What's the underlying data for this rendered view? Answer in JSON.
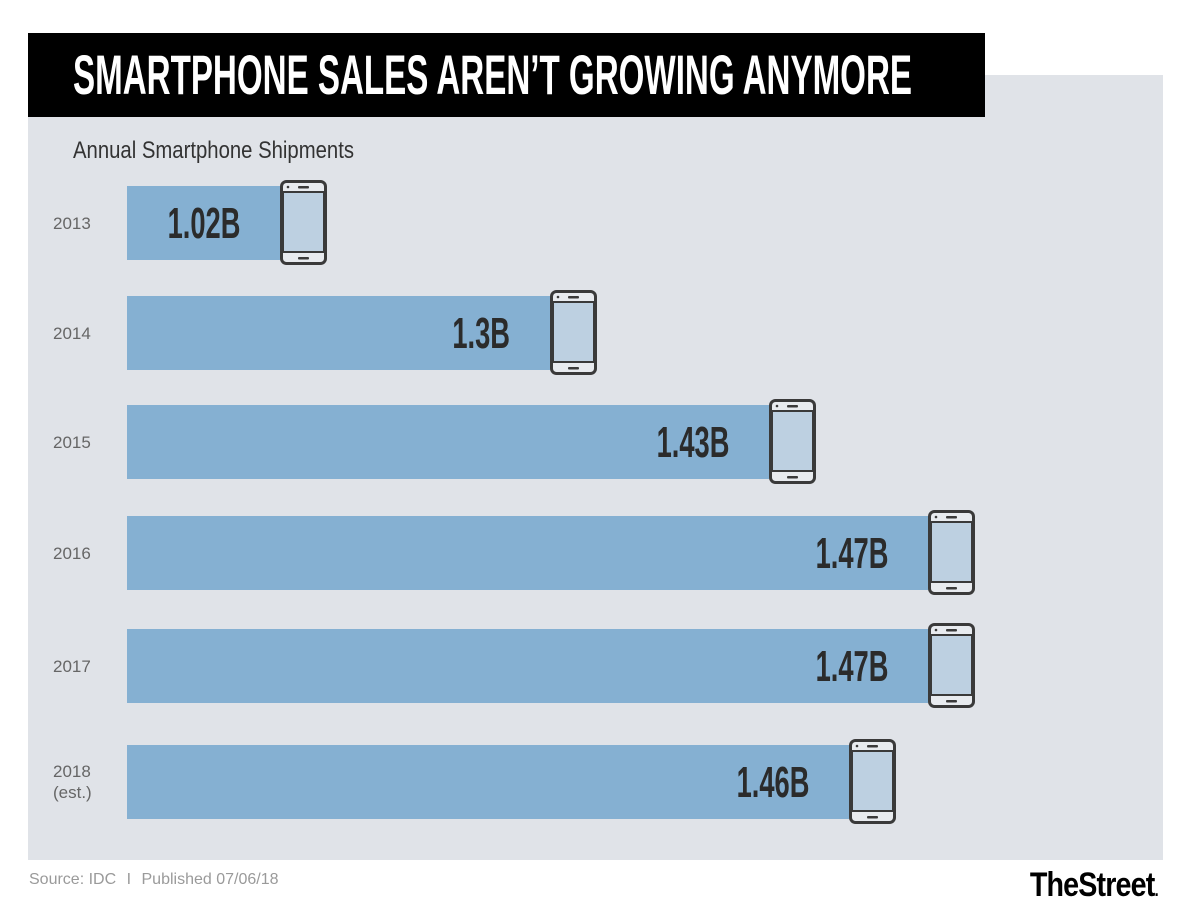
{
  "header": {
    "title": "SMARTPHONE SALES AREN’T GROWING ANYMORE"
  },
  "chart_data": {
    "type": "bar",
    "orientation": "horizontal",
    "title": "SMARTPHONE SALES AREN’T GROWING ANYMORE",
    "subtitle": "Annual Smartphone Shipments",
    "xlabel": "",
    "ylabel": "",
    "unit": "billion units",
    "categories": [
      "2013",
      "2014",
      "2015",
      "2016",
      "2017",
      "2018\n(est.)"
    ],
    "category_lines": [
      [
        "2013"
      ],
      [
        "2014"
      ],
      [
        "2015"
      ],
      [
        "2016"
      ],
      [
        "2017"
      ],
      [
        "2018",
        "(est.)"
      ]
    ],
    "values": [
      1.02,
      1.3,
      1.43,
      1.47,
      1.47,
      1.46
    ],
    "data_labels": [
      "1.02B",
      "1.3B",
      "1.43B",
      "1.47B",
      "1.47B",
      "1.46B"
    ],
    "bar_icon": "smartphone-icon",
    "grid": false,
    "legend": "none"
  },
  "footer": {
    "source_text": "Source: IDC",
    "separator": "I",
    "published_text": "Published 07/06/18"
  },
  "branding": {
    "logo_text": "TheStreet",
    "logo_dot": "."
  },
  "colors": {
    "bar": "#85b0d2",
    "panel": "#e0e3e8",
    "title_bg": "#000000",
    "phone_outline": "#3a3a3a",
    "phone_screen": "#bdd0e1"
  }
}
